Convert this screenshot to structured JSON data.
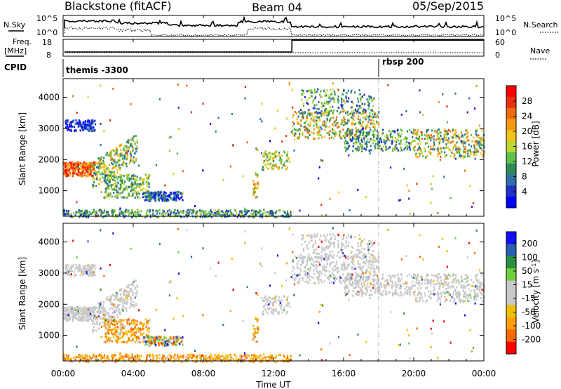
{
  "header": {
    "station": "Blackstone (fitACF)",
    "beam": "Beam 04",
    "date": "05/Sep/2015"
  },
  "labels": {
    "nsky": "N.Sky",
    "nsearch": "N.Search",
    "freq": "Freq.",
    "freq_unit": "[MHz]",
    "nave": "Nave",
    "cpid": "CPID",
    "cpid_first": "themis -3300",
    "cpid_second": "rbsp 200",
    "ylabel": "Slant Range [km]",
    "xlabel": "Time UT",
    "power_label": "Power [dB]",
    "velocity_label": "Velocity [m s-1]",
    "velocity_unit_base": "Velocity [m s",
    "velocity_unit_sup": "-1",
    "velocity_unit_end": "]"
  },
  "noise_axis": {
    "left_top": "10^5",
    "left_bottom": "10^0",
    "right_top": "10^5",
    "right_bottom": "10^0"
  },
  "freq_axis": {
    "left_top": "18",
    "left_bottom": "8",
    "right_top": "60",
    "right_bottom": "0"
  },
  "chart_data": {
    "type": "heatmap",
    "x_ticks": [
      "00:00",
      "04:00",
      "08:00",
      "12:00",
      "16:00",
      "20:00",
      "00:00"
    ],
    "x_hours": [
      0,
      4,
      8,
      12,
      16,
      20,
      24
    ],
    "y_ticks": [
      "1000",
      "2000",
      "3000",
      "4000"
    ],
    "y_values": [
      1000,
      2000,
      3000,
      4000
    ],
    "ylim": [
      180,
      4600
    ],
    "xlim_hours": [
      0,
      24
    ],
    "cpid_change_hour": 18,
    "freq_jump_hour": 13.05,
    "freq_before_mhz": 10.5,
    "freq_after_mhz": 17.5,
    "power_colorbar": {
      "ticks": [
        "28",
        "24",
        "20",
        "16",
        "12",
        "8",
        "4"
      ],
      "range": [
        0,
        32
      ]
    },
    "velocity_colorbar": {
      "ticks": [
        "200",
        "100",
        "50",
        "15",
        "-15",
        "-50",
        "-100",
        "-200"
      ]
    },
    "power_colors": [
      "#0000ff",
      "#2030c8",
      "#2f6fa6",
      "#2e8b57",
      "#5fbf4a",
      "#bcd630",
      "#f0c418",
      "#f29a10",
      "#f06a10",
      "#e83010",
      "#ff0000"
    ],
    "velocity_colors": [
      "#ff0000",
      "#ff6a00",
      "#ffa000",
      "#f0c000",
      "#c8c8c8",
      "#c8c8c8",
      "#6fcf3f",
      "#2a8f3f",
      "#2a5faf",
      "#1010ff"
    ]
  }
}
